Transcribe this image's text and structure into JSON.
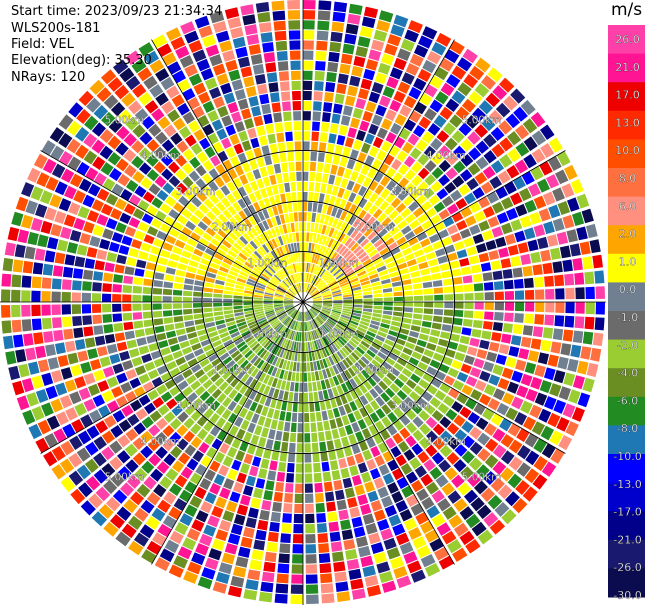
{
  "header": {
    "start_time": "Start time: 2023/09/23 21:34:34",
    "instrument": "WLS200s-181",
    "field": "Field: VEL",
    "elevation": "Elevation(deg): 35.30",
    "nrays": "NRays: 120"
  },
  "chart_data": {
    "type": "heatmap",
    "subtype": "polar-ppi",
    "field": "VEL",
    "units": "m/s",
    "n_rays": 120,
    "n_gates": 30,
    "max_range_km": 6.0,
    "ring_labels_km": [
      {
        "range": 1,
        "label": "1.00km"
      },
      {
        "range": 2,
        "label": "2.00km"
      },
      {
        "range": 3,
        "label": "3.00km"
      },
      {
        "range": 4,
        "label": "4.00km"
      },
      {
        "range": 5,
        "label": "5.00km"
      }
    ],
    "ring_lines_km": [
      1,
      2,
      3
    ],
    "spokes_deg": [
      0,
      30,
      60,
      90,
      120,
      150,
      180,
      210,
      240,
      270,
      300,
      330
    ],
    "colorbar": {
      "title": "m/s",
      "ticks": [
        "26.0",
        "21.0",
        "17.0",
        "13.0",
        "10.0",
        "8.0",
        "6.0",
        "2.0",
        "1.0",
        "0.0",
        "-1.0",
        "-2.0",
        "-4.0",
        "-6.0",
        "-8.0",
        "-10.0",
        "-13.0",
        "-17.0",
        "-21.0",
        "-26.0",
        "-30.0"
      ],
      "colors": [
        "#ff40a8",
        "#ff1493",
        "#ee0000",
        "#ff2a00",
        "#ff4e00",
        "#ff7040",
        "#ff9080",
        "#ffa500",
        "#ffff00",
        "#708090",
        "#6b6b6b",
        "#9acd32",
        "#6b8e23",
        "#228b22",
        "#1f78b4",
        "#0000ff",
        "#0000cd",
        "#00008b",
        "#191970",
        "#0b0b4f"
      ]
    },
    "regions": [
      {
        "name": "inner-north",
        "range_km": [
          0,
          3
        ],
        "dominant_color": "#ffff00",
        "dominant_value_ms": 2.0
      },
      {
        "name": "inner-south",
        "range_km": [
          0,
          3
        ],
        "dominant_color": "#9acd32",
        "dominant_value_ms": -2.0
      },
      {
        "name": "outer-ring",
        "range_km": [
          3.5,
          6
        ],
        "description": "noise"
      }
    ]
  }
}
